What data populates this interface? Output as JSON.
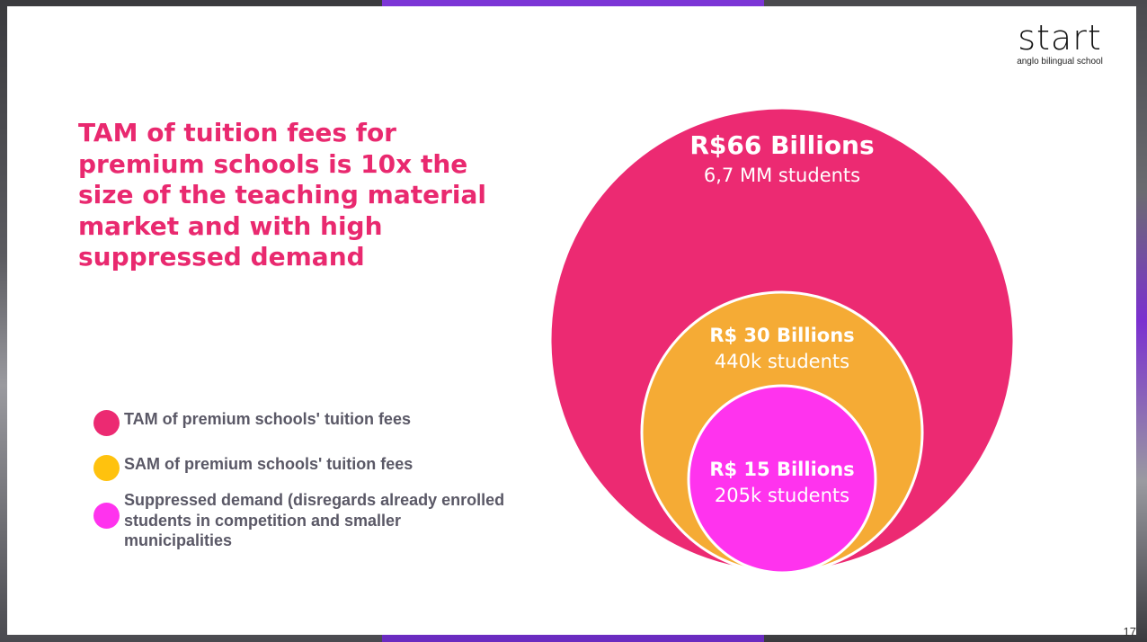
{
  "logo": {
    "word": "start",
    "tagline": "anglo bilingual school"
  },
  "headline": "TAM of tuition fees for premium schools is 10x the size of the teaching material market and with high suppressed demand",
  "legend": [
    {
      "label": "TAM of premium schools' tuition fees",
      "color": "#ec2a72"
    },
    {
      "label": "SAM of premium schools' tuition fees",
      "color": "#ffc20e"
    },
    {
      "label": "Suppressed demand (disregards already enrolled students in competition and smaller municipalities",
      "color": "#ff33ee"
    }
  ],
  "circles": [
    {
      "value": "R$66 Billions",
      "students": "6,7 MM students",
      "color": "#ec2a72"
    },
    {
      "value": "R$ 30 Billions",
      "students": "440k students",
      "color": "#f5ab35"
    },
    {
      "value": "R$ 15 Billions",
      "students": "205k students",
      "color": "#ff33ee"
    }
  ],
  "page_number": "17"
}
